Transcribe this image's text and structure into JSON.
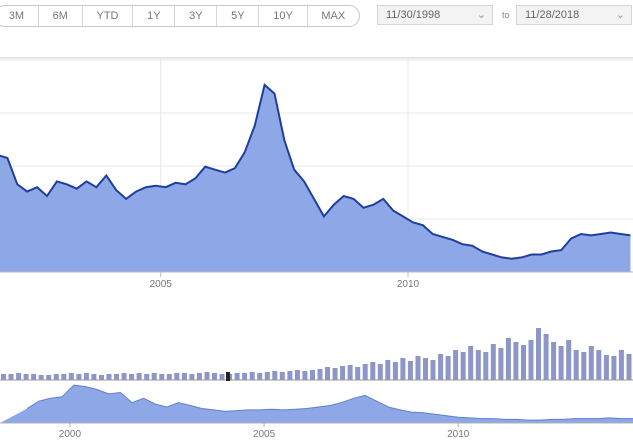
{
  "range_selector": {
    "buttons": [
      "3M",
      "6M",
      "YTD",
      "1Y",
      "3Y",
      "5Y",
      "10Y",
      "MAX"
    ]
  },
  "date_range": {
    "from": "11/30/1998",
    "separator": "to",
    "to": "11/28/2018"
  },
  "colors": {
    "line": "#1f3f9f",
    "area": "#8ea7e6",
    "volume_bar": "#8c96c8",
    "navigator_area": "#8ea7e6",
    "grid": "#e8e8e8"
  },
  "chart_data": [
    {
      "type": "area",
      "name": "main",
      "x_ticks": [
        "2005",
        "2010"
      ],
      "series": [
        {
          "x": [
            2001.7,
            2001.9,
            2002.1,
            2002.3,
            2002.5,
            2002.7,
            2002.9,
            2003.1,
            2003.3,
            2003.5,
            2003.7,
            2003.9,
            2004.1,
            2004.3,
            2004.5,
            2004.7,
            2004.9,
            2005.1,
            2005.3,
            2005.5,
            2005.7,
            2005.9,
            2006.1,
            2006.3,
            2006.5,
            2006.7,
            2006.9,
            2007.1,
            2007.3,
            2007.5,
            2007.7,
            2007.9,
            2008.1,
            2008.3,
            2008.5,
            2008.7,
            2008.9,
            2009.1,
            2009.3,
            2009.5,
            2009.7,
            2009.9,
            2010.1,
            2010.3,
            2010.5,
            2010.7,
            2010.9,
            2011.1,
            2011.3,
            2011.5,
            2011.7,
            2011.9,
            2012.1,
            2012.3,
            2012.5,
            2012.7,
            2012.9,
            2013.1,
            2013.3,
            2013.5,
            2013.7,
            2013.9,
            2014.1,
            2014.3,
            2014.5
          ],
          "y": [
            80,
            78,
            60,
            55,
            58,
            52,
            62,
            60,
            57,
            62,
            58,
            66,
            56,
            50,
            55,
            58,
            59,
            58,
            61,
            60,
            64,
            72,
            70,
            68,
            71,
            82,
            100,
            128,
            122,
            90,
            70,
            62,
            50,
            38,
            46,
            52,
            50,
            44,
            46,
            50,
            42,
            38,
            34,
            32,
            26,
            24,
            22,
            19,
            18,
            14,
            12,
            10,
            9,
            10,
            12,
            12,
            14,
            15,
            23,
            26,
            25,
            26,
            27,
            26,
            25
          ]
        }
      ]
    },
    {
      "type": "bar",
      "name": "volume",
      "values": [
        6,
        6,
        7,
        6,
        6,
        5,
        5,
        6,
        6,
        7,
        6,
        7,
        6,
        5,
        6,
        6,
        7,
        6,
        7,
        6,
        7,
        6,
        6,
        7,
        7,
        6,
        7,
        8,
        7,
        6,
        6,
        7,
        7,
        8,
        7,
        8,
        9,
        8,
        9,
        10,
        9,
        10,
        11,
        13,
        12,
        14,
        15,
        13,
        16,
        18,
        16,
        20,
        18,
        22,
        19,
        24,
        22,
        20,
        26,
        24,
        30,
        28,
        34,
        30,
        28,
        36,
        32,
        42,
        38,
        35,
        40,
        52,
        46,
        38,
        34,
        40,
        30,
        28,
        34,
        30,
        25,
        24,
        30,
        26
      ]
    },
    {
      "type": "area",
      "name": "navigator",
      "x_ticks": [
        "2000",
        "2005",
        "2010"
      ],
      "series": [
        {
          "x": [
            1998.9,
            1999.2,
            1999.5,
            1999.8,
            2000.1,
            2000.4,
            2000.7,
            2001.0,
            2001.3,
            2001.6,
            2001.9,
            2002.2,
            2002.5,
            2002.8,
            2003.1,
            2003.4,
            2003.7,
            2004.0,
            2004.3,
            2004.6,
            2004.9,
            2005.2,
            2005.5,
            2005.8,
            2006.1,
            2006.4,
            2006.7,
            2007.0,
            2007.3,
            2007.6,
            2007.9,
            2008.2,
            2008.5,
            2008.8,
            2009.1,
            2009.4,
            2009.7,
            2010.0,
            2010.3,
            2010.6,
            2010.9,
            2011.2,
            2011.5,
            2011.8,
            2012.1,
            2012.4,
            2012.7,
            2013.0,
            2013.3,
            2013.6,
            2013.9,
            2014.2,
            2014.5
          ],
          "y": [
            20,
            30,
            34,
            36,
            52,
            50,
            46,
            40,
            42,
            28,
            34,
            26,
            22,
            28,
            24,
            20,
            18,
            16,
            17,
            18,
            18,
            19,
            18,
            19,
            20,
            22,
            24,
            28,
            34,
            38,
            30,
            22,
            18,
            15,
            14,
            12,
            10,
            8,
            7,
            6,
            6,
            5,
            5,
            4,
            4,
            5,
            5,
            6,
            6,
            6,
            7,
            6,
            6
          ]
        }
      ]
    }
  ]
}
